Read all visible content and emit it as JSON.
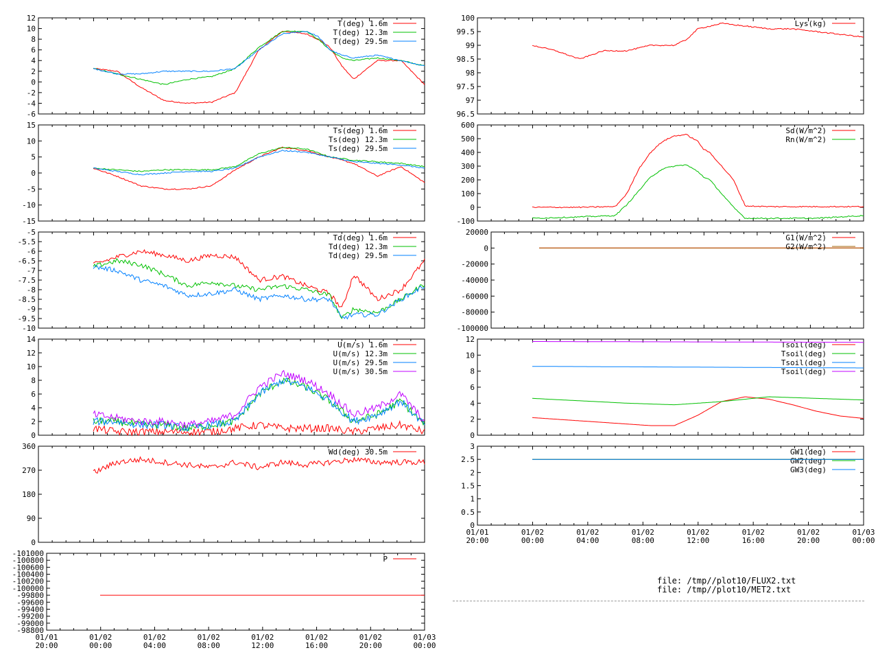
{
  "colors": {
    "c1": "#ff0000",
    "c2": "#00c000",
    "c3": "#0080ff",
    "c4": "#c000ff"
  },
  "files": [
    "file: /tmp//plot10/FLUX2.txt",
    "file: /tmp//plot10/MET2.txt"
  ],
  "chart_data": [
    {
      "id": "air-temp",
      "type": "line",
      "ylim": [
        -6,
        12
      ],
      "yticks": [
        "12",
        "10",
        "8",
        "6",
        "4",
        "2",
        "0",
        "-2",
        "-4",
        "-6"
      ],
      "x_start": "01/01 20:00",
      "x_end": "01/03 00:00",
      "series": [
        {
          "name": "T(deg)  1.6m",
          "color": "#ff0000",
          "x": [
            0,
            2,
            4,
            6,
            8,
            10,
            12,
            14,
            16,
            18,
            19,
            20,
            21,
            22,
            24,
            26,
            28
          ],
          "values": [
            2.5,
            2,
            -1,
            -3.5,
            -4,
            -3.8,
            -2,
            6,
            9.5,
            9,
            8,
            6.5,
            3,
            0.5,
            4,
            4,
            -0.5
          ]
        },
        {
          "name": "T(deg) 12.3m",
          "color": "#00c000",
          "x": [
            0,
            2,
            4,
            6,
            8,
            10,
            12,
            14,
            16,
            18,
            19,
            20,
            21,
            22,
            24,
            26,
            28
          ],
          "values": [
            2.5,
            1.5,
            0.5,
            -0.5,
            0.5,
            1,
            2.5,
            6.5,
            9.5,
            9.5,
            8,
            6,
            4.5,
            4,
            4.5,
            4,
            3
          ]
        },
        {
          "name": "T(deg) 29.5m",
          "color": "#0080ff",
          "x": [
            0,
            2,
            4,
            6,
            8,
            10,
            12,
            14,
            16,
            18,
            19,
            20,
            21,
            22,
            24,
            26,
            28
          ],
          "values": [
            2.5,
            1.5,
            1.5,
            2,
            2,
            2,
            2.5,
            6,
            9,
            9.5,
            8.5,
            6,
            5,
            4.5,
            5,
            4,
            3
          ]
        }
      ]
    },
    {
      "id": "surface-temp",
      "type": "line",
      "ylim": [
        -15,
        15
      ],
      "yticks": [
        "15",
        "10",
        "5",
        "0",
        "-5",
        "-10",
        "-15"
      ],
      "x_start": "01/01 20:00",
      "x_end": "01/03 00:00",
      "series": [
        {
          "name": "Ts(deg)  1.6m",
          "color": "#ff0000",
          "x": [
            0,
            2,
            4,
            6,
            8,
            10,
            12,
            14,
            16,
            18,
            20,
            22,
            24,
            26,
            28
          ],
          "values": [
            1.5,
            -1,
            -4,
            -5,
            -5,
            -4,
            1,
            5,
            8,
            7,
            5,
            3,
            -1,
            2,
            -3
          ]
        },
        {
          "name": "Ts(deg) 12.3m",
          "color": "#00c000",
          "x": [
            0,
            2,
            4,
            6,
            8,
            10,
            12,
            14,
            16,
            18,
            20,
            22,
            24,
            26,
            28
          ],
          "values": [
            1.5,
            1,
            0.5,
            1,
            1,
            1,
            2,
            6,
            8,
            7.5,
            5,
            4,
            3.5,
            3,
            2
          ]
        },
        {
          "name": "Ts(deg) 29.5m",
          "color": "#0080ff",
          "x": [
            0,
            2,
            4,
            6,
            8,
            10,
            12,
            14,
            16,
            18,
            20,
            22,
            24,
            26,
            28
          ],
          "values": [
            1.5,
            0.5,
            -0.5,
            0,
            0.5,
            0.5,
            1.5,
            5,
            7,
            6.5,
            5,
            3.5,
            3,
            2.5,
            1.5
          ]
        }
      ]
    },
    {
      "id": "dewpoint",
      "type": "line",
      "ylim": [
        -10,
        -5
      ],
      "yticks": [
        "-5",
        "-5.5",
        "-6",
        "-6.5",
        "-7",
        "-7.5",
        "-8",
        "-8.5",
        "-9",
        "-9.5",
        "-10"
      ],
      "x_start": "01/01 20:00",
      "x_end": "01/03 00:00",
      "series": [
        {
          "name": "Td(deg)  1.6m",
          "color": "#ff0000",
          "x": [
            0,
            2,
            4,
            6,
            8,
            10,
            12,
            14,
            16,
            18,
            20,
            21,
            22,
            24,
            26,
            28
          ],
          "values": [
            -6.7,
            -6.3,
            -6,
            -6.2,
            -6.5,
            -6.2,
            -6.3,
            -7.5,
            -7.3,
            -7.8,
            -8.2,
            -9,
            -7.2,
            -8.5,
            -8,
            -6.5
          ]
        },
        {
          "name": "Td(deg) 12.3m",
          "color": "#00c000",
          "x": [
            0,
            2,
            4,
            6,
            8,
            10,
            12,
            14,
            16,
            18,
            20,
            21,
            22,
            24,
            26,
            28
          ],
          "values": [
            -6.8,
            -6.5,
            -6.7,
            -7.2,
            -7.8,
            -7.6,
            -7.8,
            -8,
            -7.8,
            -8,
            -8.3,
            -9.5,
            -9,
            -9.2,
            -8.5,
            -7.7
          ]
        },
        {
          "name": "Td(deg) 29.5m",
          "color": "#0080ff",
          "x": [
            0,
            2,
            4,
            6,
            8,
            10,
            12,
            14,
            16,
            18,
            20,
            21,
            22,
            24,
            26,
            28
          ],
          "values": [
            -6.8,
            -7,
            -7.5,
            -7.8,
            -8.3,
            -8.2,
            -8,
            -8.5,
            -8.3,
            -8.5,
            -8.5,
            -9.5,
            -9.3,
            -9.3,
            -8.5,
            -7.8
          ]
        }
      ]
    },
    {
      "id": "wind-speed",
      "type": "line",
      "ylim": [
        0,
        14
      ],
      "yticks": [
        "14",
        "12",
        "10",
        "8",
        "6",
        "4",
        "2",
        "0"
      ],
      "x_start": "01/01 20:00",
      "x_end": "01/03 00:00",
      "series": [
        {
          "name": "U(m/s)  1.6m",
          "color": "#ff0000",
          "x": [
            0,
            2,
            4,
            6,
            8,
            10,
            12,
            14,
            16,
            18,
            20,
            22,
            24,
            26,
            28
          ],
          "values": [
            1,
            0.5,
            0.5,
            0.5,
            0.5,
            0.5,
            1,
            1.5,
            1,
            1,
            1,
            0.5,
            1,
            1.5,
            0.5
          ]
        },
        {
          "name": "U(m/s) 12.3m",
          "color": "#00c000",
          "x": [
            0,
            2,
            4,
            6,
            8,
            10,
            12,
            14,
            16,
            18,
            20,
            22,
            24,
            26,
            28
          ],
          "values": [
            2,
            2,
            1.5,
            1.5,
            1,
            1.5,
            2,
            6,
            8,
            7,
            5,
            2,
            3,
            5,
            1.5
          ]
        },
        {
          "name": "U(m/s) 29.5m",
          "color": "#0080ff",
          "x": [
            0,
            2,
            4,
            6,
            8,
            10,
            12,
            14,
            16,
            18,
            20,
            22,
            24,
            26,
            28
          ],
          "values": [
            2,
            2,
            1.5,
            1.5,
            1,
            1.5,
            2,
            6,
            8,
            7,
            5,
            2,
            3,
            5,
            1.5
          ]
        },
        {
          "name": "U(m/s) 30.5m",
          "color": "#c000ff",
          "x": [
            0,
            2,
            4,
            6,
            8,
            10,
            12,
            14,
            16,
            18,
            20,
            22,
            24,
            26,
            28
          ],
          "values": [
            3,
            2.5,
            2,
            2,
            1.5,
            2,
            3,
            7,
            9,
            8,
            6,
            3,
            4,
            6,
            2
          ]
        }
      ]
    },
    {
      "id": "wind-dir",
      "type": "line",
      "ylim": [
        0,
        360
      ],
      "yticks": [
        "360",
        "270",
        "180",
        "90",
        "0"
      ],
      "x_start": "01/01 20:00",
      "x_end": "01/03 00:00",
      "series": [
        {
          "name": "Wd(deg) 30.5m",
          "color": "#ff0000",
          "x": [
            0,
            2,
            4,
            6,
            8,
            10,
            12,
            14,
            16,
            18,
            20,
            22,
            24,
            26,
            28
          ],
          "values": [
            260,
            300,
            310,
            300,
            290,
            280,
            300,
            280,
            300,
            290,
            300,
            310,
            300,
            300,
            300
          ]
        }
      ]
    },
    {
      "id": "pressure",
      "type": "line",
      "ylim": [
        -101000,
        -98800
      ],
      "yticks": [
        "-101000",
        "-100800",
        "-100600",
        "-100400",
        "-100200",
        "-100000",
        "-99800",
        "-99600",
        "-99400",
        "-99200",
        "-99000",
        "-98800"
      ],
      "xticks": [
        "01/01\n20:00",
        "01/02\n00:00",
        "01/02\n04:00",
        "01/02\n08:00",
        "01/02\n12:00",
        "01/02\n16:00",
        "01/02\n20:00",
        "01/03\n00:00"
      ],
      "x_start": "01/01 20:00",
      "x_end": "01/03 00:00",
      "series": [
        {
          "name": "P",
          "color": "#ff0000",
          "x": [
            0,
            28
          ],
          "values": [
            -100000,
            -100000
          ]
        }
      ]
    },
    {
      "id": "lysimeter",
      "type": "line",
      "ylim": [
        96.5,
        100
      ],
      "yticks": [
        "100",
        "99.5",
        "99",
        "98.5",
        "98",
        "97.5",
        "97",
        "96.5"
      ],
      "x_start": "01/01 20:00",
      "x_end": "01/03 00:00",
      "series": [
        {
          "name": "Lys(kg)",
          "color": "#ff0000",
          "x": [
            0,
            2,
            4,
            6,
            8,
            10,
            12,
            13,
            14,
            16,
            18,
            20,
            22,
            24,
            26,
            28
          ],
          "values": [
            99,
            98.8,
            98.5,
            98.8,
            98.8,
            99,
            99,
            99.2,
            99.6,
            99.8,
            99.7,
            99.6,
            99.6,
            99.5,
            99.4,
            99.3
          ]
        }
      ]
    },
    {
      "id": "radiation",
      "type": "line",
      "ylim": [
        -100,
        600
      ],
      "yticks": [
        "600",
        "500",
        "400",
        "300",
        "200",
        "100",
        "0",
        "-100"
      ],
      "x_start": "01/01 20:00",
      "x_end": "01/03 00:00",
      "series": [
        {
          "name": "Sd(W/m^2)",
          "color": "#ff0000",
          "x": [
            0,
            4,
            7,
            8,
            9,
            10,
            11,
            12,
            13,
            14,
            14.5,
            15,
            16,
            17,
            18,
            20,
            24,
            28
          ],
          "values": [
            0,
            0,
            5,
            100,
            280,
            400,
            480,
            520,
            530,
            480,
            420,
            400,
            300,
            200,
            10,
            5,
            5,
            5
          ]
        },
        {
          "name": "Rn(W/m^2)",
          "color": "#00c000",
          "x": [
            0,
            4,
            7,
            8,
            9,
            10,
            11,
            12,
            13,
            14,
            14.5,
            15,
            16,
            17,
            18,
            20,
            24,
            28
          ],
          "values": [
            -80,
            -70,
            -60,
            20,
            120,
            220,
            280,
            300,
            310,
            260,
            220,
            200,
            100,
            0,
            -80,
            -80,
            -80,
            -60
          ]
        }
      ]
    },
    {
      "id": "ground-heat",
      "type": "line",
      "ylim": [
        -100000,
        20000
      ],
      "yticks": [
        "20000",
        "0",
        "-20000",
        "-40000",
        "-60000",
        "-80000",
        "-100000"
      ],
      "x_start": "01/01 20:00",
      "x_end": "01/03 00:00",
      "series": [
        {
          "name": "G1(W/m^2)",
          "color": "#ff0000",
          "x": [
            0,
            28
          ],
          "values": [
            0,
            0
          ]
        },
        {
          "name": "G2(W/m^2)",
          "color": "#a06000",
          "x": [
            0,
            28
          ],
          "values": [
            0,
            0
          ]
        }
      ]
    },
    {
      "id": "soil-temp",
      "type": "line",
      "ylim": [
        0,
        12
      ],
      "yticks": [
        "12",
        "10",
        "8",
        "6",
        "4",
        "2",
        "0"
      ],
      "x_start": "01/01 20:00",
      "x_end": "01/03 00:00",
      "series": [
        {
          "name": "Tsoil(deg)",
          "color": "#ff0000",
          "x": [
            0,
            4,
            8,
            10,
            12,
            14,
            16,
            18,
            20,
            22,
            24,
            26,
            28
          ],
          "values": [
            2.2,
            1.8,
            1.4,
            1.2,
            1.2,
            2.5,
            4.2,
            4.8,
            4.5,
            3.8,
            3,
            2.4,
            2.1
          ]
        },
        {
          "name": "Tsoil(deg)",
          "color": "#00c000",
          "x": [
            0,
            4,
            8,
            12,
            16,
            20,
            24,
            28
          ],
          "values": [
            4.6,
            4.3,
            4.0,
            3.8,
            4.2,
            4.8,
            4.6,
            4.4
          ]
        },
        {
          "name": "Tsoil(deg)",
          "color": "#0080ff",
          "x": [
            0,
            28
          ],
          "values": [
            8.6,
            8.4
          ]
        },
        {
          "name": "Tsoil(deg)",
          "color": "#c000ff",
          "x": [
            0,
            28
          ],
          "values": [
            11.7,
            11.6
          ]
        }
      ]
    },
    {
      "id": "gw-temp",
      "type": "line",
      "ylim": [
        0,
        3
      ],
      "yticks": [
        "3",
        "2.5",
        "2",
        "1.5",
        "1",
        "0.5",
        "0"
      ],
      "xticks": [
        "01/01\n20:00",
        "01/02\n00:00",
        "01/02\n04:00",
        "01/02\n08:00",
        "01/02\n12:00",
        "01/02\n16:00",
        "01/02\n20:00",
        "01/03\n00:00"
      ],
      "x_start": "01/01 20:00",
      "x_end": "01/03 00:00",
      "series": [
        {
          "name": "GW1(deg)",
          "color": "#ff0000",
          "x": [
            0,
            28
          ],
          "values": [
            2.5,
            2.5
          ]
        },
        {
          "name": "GW2(deg)",
          "color": "#00c000",
          "x": [
            0,
            28
          ],
          "values": [
            2.5,
            2.5
          ]
        },
        {
          "name": "GW3(deg)",
          "color": "#0080ff",
          "x": [
            0,
            28
          ],
          "values": [
            2.5,
            2.5
          ]
        }
      ]
    }
  ]
}
